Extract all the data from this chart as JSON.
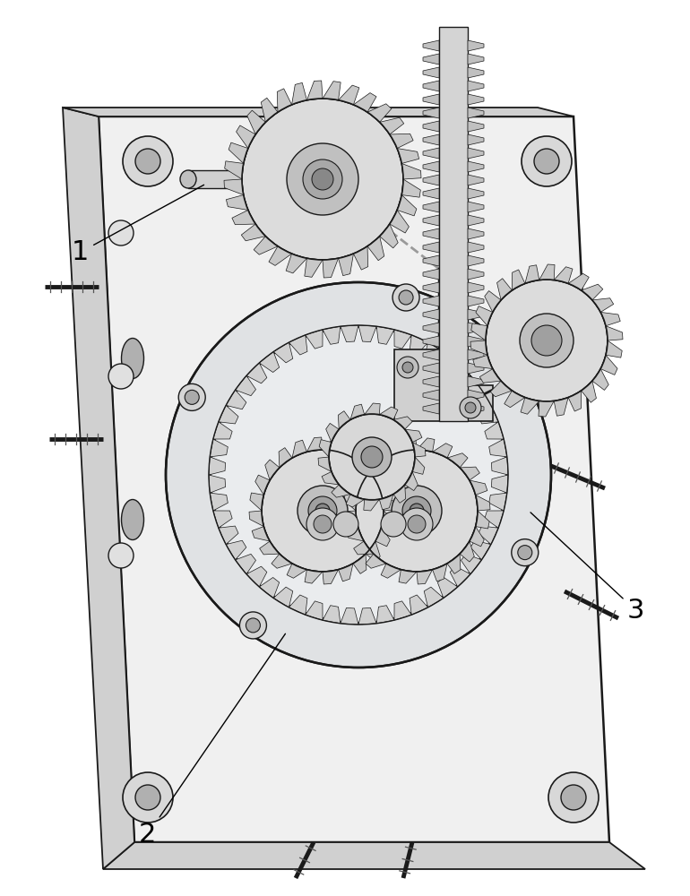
{
  "background_color": "#ffffff",
  "label_1": "1",
  "label_2": "2",
  "label_3": "3",
  "line_color": "#1a1a1a",
  "plate_fill": "#f0f0f0",
  "plate_side_fill": "#d0d0d0",
  "gear_fill": "#e8e8e8",
  "gear_dark": "#c0c0c0",
  "ring_fill": "#e4e4e4",
  "screw_color": "#333333"
}
